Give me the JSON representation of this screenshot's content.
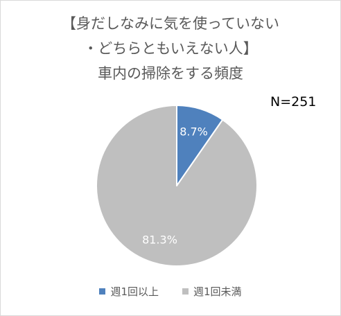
{
  "chart_data": {
    "type": "pie",
    "title_lines": [
      "【身だしなみに気を使っていない",
      "・どちらともいえない人】",
      "車内の掃除をする頻度"
    ],
    "annotation": "N=251",
    "categories": [
      "週1回以上",
      "週1回未満"
    ],
    "values": [
      8.7,
      81.3
    ],
    "data_labels": [
      "8.7%",
      "81.3%"
    ],
    "colors": [
      "#4f81bd",
      "#bfbfbf"
    ],
    "label_colors": [
      "#ffffff",
      "#ffffff"
    ],
    "legend_position": "bottom",
    "start": "top",
    "direction": "clockwise"
  }
}
